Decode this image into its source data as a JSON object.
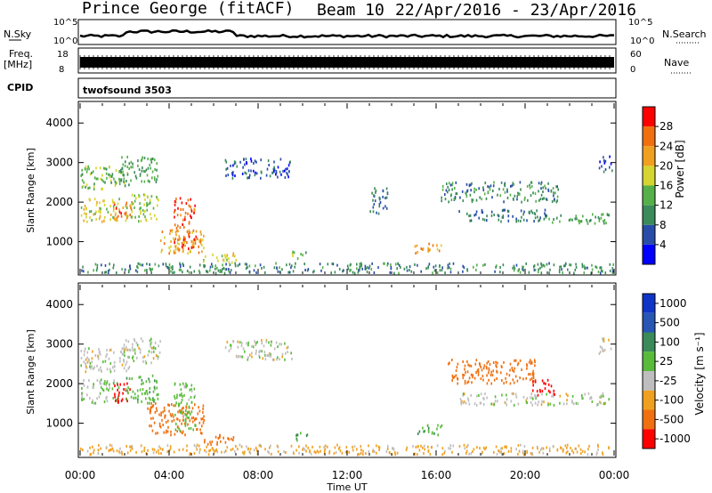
{
  "header": {
    "title": "Prince George (fitACF)",
    "beam": "Beam 10",
    "dates": "22/Apr/2016 - 23/Apr/2016"
  },
  "top_panels": {
    "nsky_label": "N.Sky",
    "nsky_ticks": [
      "10^5",
      "10^0"
    ],
    "nsearch_label": "N.Search",
    "nsearch_ticks": [
      "10^5",
      "10^0"
    ],
    "freq_label_1": "Freq.",
    "freq_label_2": "[MHz]",
    "freq_ticks": [
      "18",
      "8"
    ],
    "nave_label": "Nave",
    "nave_ticks": [
      "60",
      "0"
    ],
    "cpid_label": "CPID",
    "cpid_text": "twofsound 3503"
  },
  "colors": {
    "power": [
      "#0000ff",
      "#284ca8",
      "#3a8a5a",
      "#56b04a",
      "#d6d430",
      "#f0a020",
      "#f07010",
      "#ff0000"
    ],
    "velocity": [
      "#1034c8",
      "#2856b4",
      "#3a8a5a",
      "#58bc3a",
      "#bebebe",
      "#f0a020",
      "#f07010",
      "#ff0000"
    ]
  },
  "chart_data": [
    {
      "type": "heatmap",
      "name": "power",
      "title": "",
      "xlabel": "",
      "ylabel": "Slant Range [km]",
      "xlim": [
        "00:00",
        "00:00"
      ],
      "ylim": [
        180,
        4500
      ],
      "yticks": [
        1000,
        2000,
        3000,
        4000
      ],
      "colorbar": {
        "label": "Power [dB]",
        "ticks": [
          4,
          8,
          12,
          16,
          20,
          24,
          28
        ],
        "range": [
          0,
          32
        ]
      },
      "x_tick_labels": [
        "00:00",
        "04:00",
        "08:00",
        "12:00",
        "16:00",
        "20:00",
        "00:00"
      ],
      "regions": [
        {
          "t0": 0.0,
          "t1": 2.2,
          "r0": 2300,
          "r1": 2900,
          "value": 14
        },
        {
          "t0": 0.0,
          "t1": 1.8,
          "r0": 1500,
          "r1": 2100,
          "value": 18
        },
        {
          "t0": 1.5,
          "t1": 2.3,
          "r0": 1500,
          "r1": 2000,
          "value": 26
        },
        {
          "t0": 1.8,
          "t1": 3.6,
          "r0": 2500,
          "r1": 3150,
          "value": 12
        },
        {
          "t0": 2.0,
          "t1": 3.5,
          "r0": 1500,
          "r1": 2200,
          "value": 16
        },
        {
          "t0": 3.5,
          "t1": 5.6,
          "r0": 700,
          "r1": 1300,
          "value": 22
        },
        {
          "t0": 4.2,
          "t1": 5.2,
          "r0": 800,
          "r1": 2100,
          "value": 27
        },
        {
          "t0": 5.5,
          "t1": 7.0,
          "r0": 450,
          "r1": 700,
          "value": 18
        },
        {
          "t0": 6.5,
          "t1": 9.5,
          "r0": 2600,
          "r1": 3100,
          "value": 6
        },
        {
          "t0": 9.5,
          "t1": 10.2,
          "r0": 550,
          "r1": 750,
          "value": 14
        },
        {
          "t0": 13.0,
          "t1": 13.8,
          "r0": 1700,
          "r1": 2400,
          "value": 8
        },
        {
          "t0": 15.0,
          "t1": 16.3,
          "r0": 700,
          "r1": 950,
          "value": 22
        },
        {
          "t0": 16.2,
          "t1": 21.5,
          "r0": 2000,
          "r1": 2500,
          "value": 10
        },
        {
          "t0": 17.0,
          "t1": 21.0,
          "r0": 1500,
          "r1": 1800,
          "value": 8
        },
        {
          "t0": 21.0,
          "t1": 23.8,
          "r0": 1450,
          "r1": 1700,
          "value": 12
        },
        {
          "t0": 23.3,
          "t1": 23.9,
          "r0": 2750,
          "r1": 3150,
          "value": 6
        },
        {
          "t0": 0.0,
          "t1": 24.0,
          "r0": 200,
          "r1": 450,
          "value": 10
        }
      ]
    },
    {
      "type": "heatmap",
      "name": "velocity",
      "title": "",
      "xlabel": "Time UT",
      "ylabel": "Slant Range [km]",
      "xlim": [
        "00:00",
        "00:00"
      ],
      "ylim": [
        180,
        4500
      ],
      "yticks": [
        1000,
        2000,
        3000,
        4000
      ],
      "colorbar": {
        "label": "Velocity [m s⁻¹]",
        "ticks": [
          "1000",
          "500",
          "100",
          "25",
          "-25",
          "-100",
          "-500",
          "-1000"
        ]
      },
      "x_tick_labels": [
        "00:00",
        "04:00",
        "08:00",
        "12:00",
        "16:00",
        "20:00",
        "00:00"
      ],
      "regions": [
        {
          "t0": 0.0,
          "t1": 2.2,
          "r0": 2300,
          "r1": 2900,
          "value": 0
        },
        {
          "t0": 0.0,
          "t1": 1.8,
          "r0": 1500,
          "r1": 2100,
          "value": 20
        },
        {
          "t0": 1.5,
          "t1": 2.3,
          "r0": 1500,
          "r1": 2000,
          "value": -700
        },
        {
          "t0": 2.0,
          "t1": 3.5,
          "r0": 1500,
          "r1": 2200,
          "value": 80
        },
        {
          "t0": 1.8,
          "t1": 3.6,
          "r0": 2500,
          "r1": 3150,
          "value": 10
        },
        {
          "t0": 3.0,
          "t1": 5.6,
          "r0": 700,
          "r1": 1500,
          "value": -300
        },
        {
          "t0": 4.2,
          "t1": 5.2,
          "r0": 800,
          "r1": 2000,
          "value": 60
        },
        {
          "t0": 5.5,
          "t1": 7.0,
          "r0": 450,
          "r1": 700,
          "value": -300
        },
        {
          "t0": 6.5,
          "t1": 9.5,
          "r0": 2600,
          "r1": 3100,
          "value": 5
        },
        {
          "t0": 9.5,
          "t1": 10.2,
          "r0": 550,
          "r1": 750,
          "value": 80
        },
        {
          "t0": 15.0,
          "t1": 16.3,
          "r0": 700,
          "r1": 950,
          "value": 90
        },
        {
          "t0": 16.5,
          "t1": 20.5,
          "r0": 2000,
          "r1": 2600,
          "value": -300
        },
        {
          "t0": 20.3,
          "t1": 21.3,
          "r0": 1700,
          "r1": 2100,
          "value": -700
        },
        {
          "t0": 17.0,
          "t1": 23.8,
          "r0": 1450,
          "r1": 1750,
          "value": 0
        },
        {
          "t0": 23.3,
          "t1": 23.9,
          "r0": 2750,
          "r1": 3150,
          "value": 0
        },
        {
          "t0": 0.0,
          "t1": 24.0,
          "r0": 200,
          "r1": 450,
          "value": -40
        }
      ]
    }
  ]
}
